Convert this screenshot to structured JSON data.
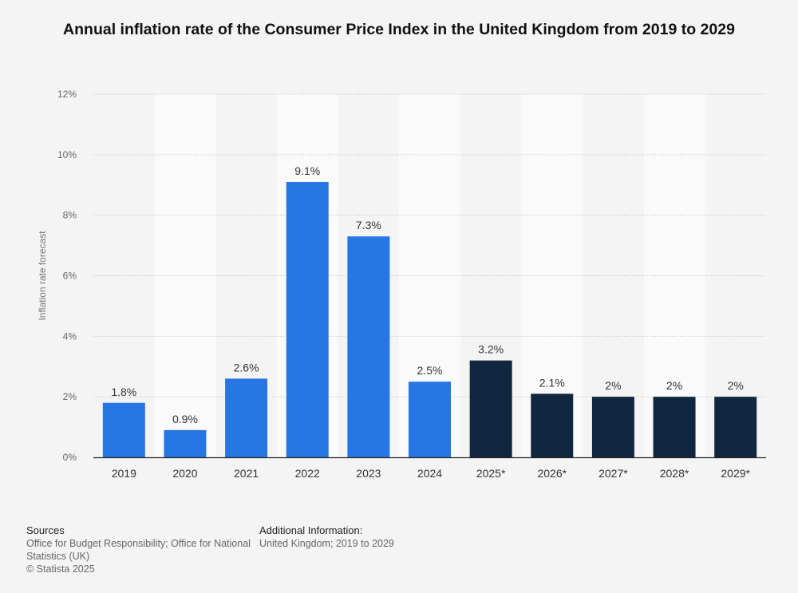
{
  "colors": {
    "actual": "#2776e3",
    "forecast": "#11263f",
    "grid": "#c9c9c9",
    "axis": "#222222",
    "band": "#ececec"
  },
  "chart_data": {
    "type": "bar",
    "title": "Annual inflation rate of the Consumer Price Index in the United Kingdom from 2019 to 2029",
    "xlabel": "",
    "ylabel": "Inflation rate forecast",
    "ylim": [
      0,
      12
    ],
    "yticks": [
      0,
      2,
      4,
      6,
      8,
      10,
      12
    ],
    "ytick_labels": [
      "0%",
      "2%",
      "4%",
      "6%",
      "8%",
      "10%",
      "12%"
    ],
    "grid": true,
    "categories": [
      "2019",
      "2020",
      "2021",
      "2022",
      "2023",
      "2024",
      "2025*",
      "2026*",
      "2027*",
      "2028*",
      "2029*"
    ],
    "values": [
      1.8,
      0.9,
      2.6,
      9.1,
      7.3,
      2.5,
      3.2,
      2.1,
      2,
      2,
      2
    ],
    "data_labels": [
      "1.8%",
      "0.9%",
      "2.6%",
      "9.1%",
      "7.3%",
      "2.5%",
      "3.2%",
      "2.1%",
      "2%",
      "2%",
      "2%"
    ],
    "forecast": [
      false,
      false,
      false,
      false,
      false,
      false,
      true,
      true,
      true,
      true,
      true
    ]
  },
  "footer": {
    "sources_heading": "Sources",
    "sources_text": "Office for Budget Responsibility; Office for National Statistics (UK)",
    "copyright": "© Statista 2025",
    "additional_heading": "Additional Information:",
    "additional_text": "United Kingdom; 2019 to 2029"
  }
}
